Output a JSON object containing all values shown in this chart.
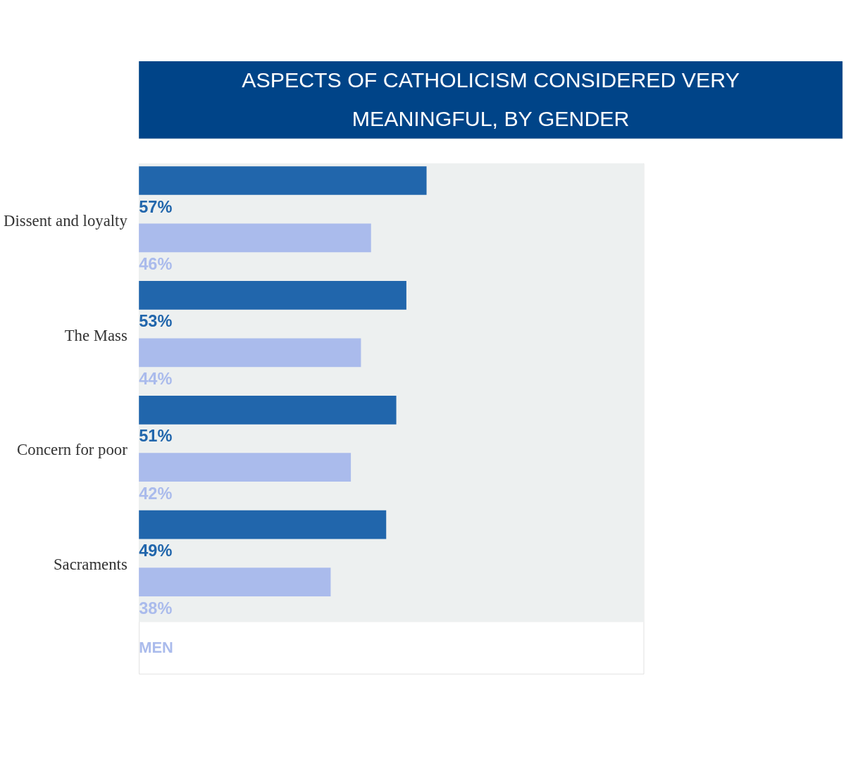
{
  "chart_data": {
    "type": "bar",
    "orientation": "horizontal",
    "title": "ASPECTS OF CATHOLICISM CONSIDERED VERY MEANINGFUL, BY GENDER",
    "categories": [
      "Dissent and loyalty",
      "The Mass",
      "Concern for poor",
      "Sacraments"
    ],
    "series": [
      {
        "color": "#2166ac",
        "values": [
          57,
          53,
          51,
          49
        ],
        "value_labels": [
          "57%",
          "53%",
          "51%",
          "49%"
        ]
      },
      {
        "name": "MEN",
        "color": "#aabbec",
        "values": [
          46,
          44,
          42,
          38
        ],
        "value_labels": [
          "46%",
          "44%",
          "42%",
          "38%"
        ]
      }
    ],
    "bands": [
      {
        "axis": "x",
        "from": 0,
        "to": 100,
        "color": "#edf0f0"
      }
    ],
    "xlim": [
      0,
      100
    ],
    "tick_labels": "y",
    "grid": false,
    "legend": "bottom left"
  }
}
